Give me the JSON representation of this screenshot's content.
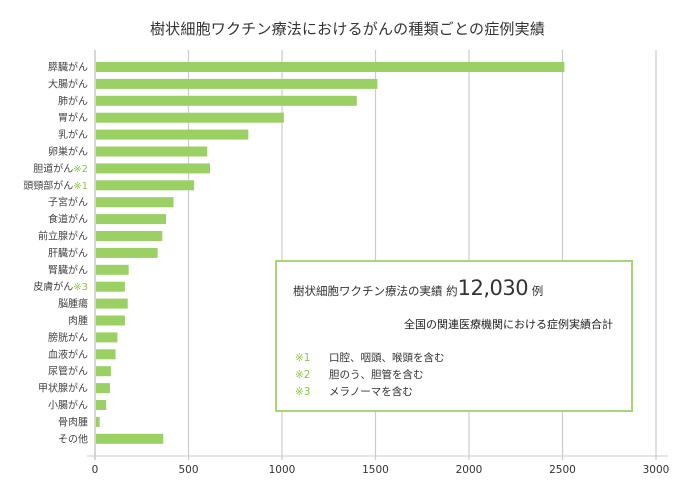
{
  "chart_data": {
    "type": "bar",
    "orientation": "horizontal",
    "title": "樹状細胞ワクチン療法におけるがんの種類ごとの症例実績",
    "xlabel": "",
    "ylabel": "",
    "xlim": [
      0,
      3000
    ],
    "xticks": [
      0,
      500,
      1000,
      1500,
      2000,
      2500,
      3000
    ],
    "grid": "vertical",
    "bar_color": "#9bd064",
    "categories": [
      {
        "label": "膵臓がん",
        "note": ""
      },
      {
        "label": "大腸がん",
        "note": ""
      },
      {
        "label": "肺がん",
        "note": ""
      },
      {
        "label": "胃がん",
        "note": ""
      },
      {
        "label": "乳がん",
        "note": ""
      },
      {
        "label": "卵巣がん",
        "note": ""
      },
      {
        "label": "胆道がん",
        "note": "※2"
      },
      {
        "label": "頭頸部がん",
        "note": "※1"
      },
      {
        "label": "子宮がん",
        "note": ""
      },
      {
        "label": "食道がん",
        "note": ""
      },
      {
        "label": "前立腺がん",
        "note": ""
      },
      {
        "label": "肝臓がん",
        "note": ""
      },
      {
        "label": "腎臓がん",
        "note": ""
      },
      {
        "label": "皮膚がん",
        "note": "※3"
      },
      {
        "label": "脳腫瘍",
        "note": ""
      },
      {
        "label": "肉腫",
        "note": ""
      },
      {
        "label": "膀胱がん",
        "note": ""
      },
      {
        "label": "血液がん",
        "note": ""
      },
      {
        "label": "尿管がん",
        "note": ""
      },
      {
        "label": "甲状腺がん",
        "note": ""
      },
      {
        "label": "小腸がん",
        "note": ""
      },
      {
        "label": "骨肉腫",
        "note": ""
      },
      {
        "label": "その他",
        "note": ""
      }
    ],
    "values": [
      2510,
      1510,
      1400,
      1010,
      820,
      600,
      615,
      530,
      420,
      380,
      360,
      335,
      180,
      160,
      175,
      160,
      120,
      110,
      85,
      80,
      60,
      25,
      365
    ]
  },
  "legend": {
    "headline_prefix": "樹状細胞ワクチン療法の実績",
    "approx": "約",
    "total": "12,030",
    "unit": "例",
    "subtitle": "全国の関連医療機関における症例実績合計",
    "notes": [
      {
        "mark": "※1",
        "text": "口腔、咽頭、喉頭を含む"
      },
      {
        "mark": "※2",
        "text": "胆のう、胆管を含む"
      },
      {
        "mark": "※3",
        "text": "メラノーマを含む"
      }
    ],
    "note_color": "#8cc63f",
    "border_color": "#a6d675"
  }
}
